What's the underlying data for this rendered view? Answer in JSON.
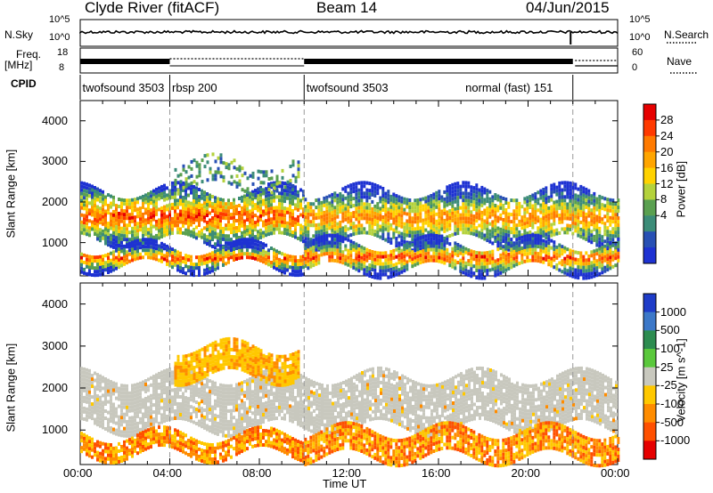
{
  "header": {
    "station": "Clyde River (fitACF)",
    "beam": "Beam 14",
    "date": "04/Jun/2015"
  },
  "status_rows": {
    "nsky_label": "N.Sky",
    "nsky_ticks": [
      "10^5",
      "10^0"
    ],
    "nsearch_label": "N.Search",
    "nsearch_ticks": [
      "10^5",
      "10^0"
    ],
    "freq_label": "Freq.",
    "freq_unit": "[MHz]",
    "freq_ticks": [
      "18",
      "8"
    ],
    "nave_label": "Nave",
    "nave_ticks": [
      "60",
      "0"
    ],
    "cpid_label": "CPID"
  },
  "cpid_segments": [
    {
      "label": "twofsound 3503",
      "start_h": 0.0,
      "end_h": 4.0
    },
    {
      "label": "rbsp 200",
      "start_h": 4.0,
      "end_h": 10.0
    },
    {
      "label": "twofsound 3503",
      "start_h": 10.0,
      "end_h": 22.0
    },
    {
      "label": "normal (fast) 151",
      "start_h": 22.0,
      "end_h": 24.0
    }
  ],
  "cpid_label_positions_h": [
    0.1,
    4.1,
    10.1,
    17.2
  ],
  "mode_change_times_h": [
    4.0,
    10.0,
    22.0
  ],
  "power_colorbar": {
    "title": "Power [dB]",
    "ticks": [
      "28",
      "24",
      "20",
      "16",
      "12",
      "8",
      "4"
    ],
    "colors": [
      "#e60000",
      "#ff3a00",
      "#ff7a00",
      "#ffa500",
      "#ffd200",
      "#b4d23c",
      "#5aa050",
      "#3c8c78",
      "#2850b4",
      "#1e32d2"
    ]
  },
  "velocity_colorbar": {
    "title": "Velocity [m s^-1]",
    "ticks": [
      "1000",
      "500",
      "100",
      "25",
      "-25",
      "-100",
      "-500",
      "-1000"
    ],
    "colors": [
      "#1e3cc8",
      "#3c78c8",
      "#2d8c50",
      "#5ac83c",
      "#c8c8be",
      "#ffc800",
      "#ff8c00",
      "#ff5000",
      "#e60000"
    ]
  },
  "chart_data": [
    {
      "type": "heatmap",
      "panel": "power",
      "ylabel": "Slant Range [km]",
      "xlabel": "Time UT",
      "x_ticks": [
        "00:00",
        "04:00",
        "08:00",
        "12:00",
        "16:00",
        "20:00",
        "00:00"
      ],
      "y_ticks": [
        1000,
        2000,
        3000,
        4000
      ],
      "xlim_h": [
        0,
        24
      ],
      "ylim_km": [
        180,
        4500
      ],
      "bands": [
        {
          "t0": 0,
          "t1": 10,
          "r0": 1050,
          "r1": 2300,
          "level": "high"
        },
        {
          "t0": 10,
          "t1": 24,
          "r0": 1000,
          "r1": 2300,
          "level": "mixed"
        },
        {
          "t0": 0,
          "t1": 10,
          "r0": 400,
          "r1": 900,
          "level": "high"
        },
        {
          "t0": 10,
          "t1": 24,
          "r0": 350,
          "r1": 1000,
          "level": "medium"
        },
        {
          "t0": 4.2,
          "t1": 9.8,
          "r0": 2300,
          "r1": 3000,
          "level": "low"
        }
      ]
    },
    {
      "type": "heatmap",
      "panel": "velocity",
      "ylabel": "Slant Range [km]",
      "xlabel": "Time UT",
      "x_ticks": [
        "00:00",
        "04:00",
        "08:00",
        "12:00",
        "16:00",
        "20:00",
        "00:00"
      ],
      "y_ticks": [
        1000,
        2000,
        3000,
        4000
      ],
      "xlim_h": [
        0,
        24
      ],
      "ylim_km": [
        180,
        4500
      ],
      "bands": [
        {
          "t0": 0,
          "t1": 24,
          "r0": 1050,
          "r1": 2300,
          "velocity": "near-zero"
        },
        {
          "t0": 0,
          "t1": 10,
          "r0": 400,
          "r1": 900,
          "velocity": "-100 to -500"
        },
        {
          "t0": 10,
          "t1": 24,
          "r0": 350,
          "r1": 1000,
          "velocity": "-100 to -500"
        },
        {
          "t0": 4.2,
          "t1": 9.8,
          "r0": 2300,
          "r1": 3000,
          "velocity": "-100"
        }
      ]
    }
  ]
}
